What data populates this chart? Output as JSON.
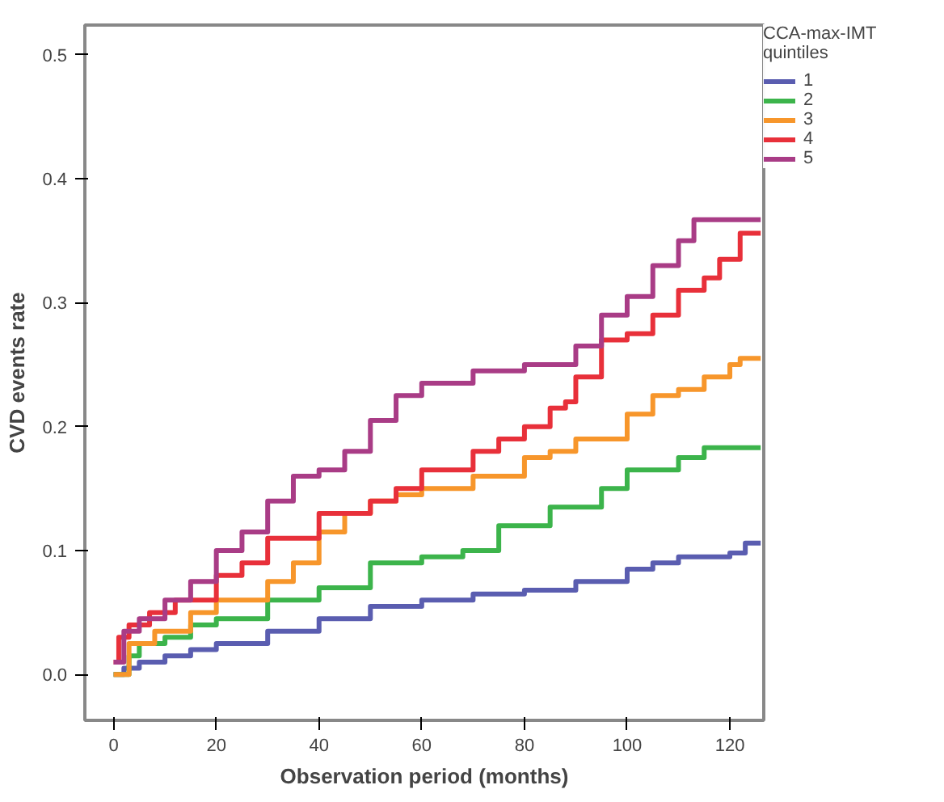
{
  "chart_data": {
    "type": "step",
    "xlabel": "Observation period (months)",
    "ylabel": "CVD events rate",
    "legend_title": "CCA-max-IMT\nquintiles",
    "legend": "top right",
    "grid": false,
    "line_style": "solid",
    "xlim": [
      -5.6,
      126.6
    ],
    "ylim": [
      -0.037,
      0.524
    ],
    "xticks": [
      0,
      20,
      40,
      60,
      80,
      100,
      120
    ],
    "yticks": [
      {
        "value": 0,
        "label": "0.0"
      },
      0.1,
      0.2,
      0.3,
      0.4,
      0.5
    ],
    "series": [
      {
        "name": "1",
        "color": "#5a5db0",
        "x": [
          0,
          2,
          5,
          10,
          15,
          20,
          30,
          40,
          50,
          60,
          70,
          80,
          90,
          100,
          105,
          110,
          120,
          123,
          126
        ],
        "values": [
          0,
          0.005,
          0.01,
          0.015,
          0.02,
          0.025,
          0.035,
          0.045,
          0.055,
          0.06,
          0.065,
          0.068,
          0.075,
          0.085,
          0.09,
          0.095,
          0.098,
          0.106,
          0.106
        ]
      },
      {
        "name": "2",
        "color": "#3cb44b",
        "x": [
          0,
          3,
          5,
          10,
          15,
          20,
          30,
          40,
          50,
          60,
          68,
          75,
          85,
          95,
          100,
          110,
          115,
          126
        ],
        "values": [
          0,
          0.015,
          0.025,
          0.03,
          0.04,
          0.045,
          0.06,
          0.07,
          0.09,
          0.095,
          0.1,
          0.12,
          0.135,
          0.15,
          0.165,
          0.175,
          0.183,
          0.183
        ]
      },
      {
        "name": "3",
        "color": "#f7962b",
        "x": [
          0,
          3,
          8,
          15,
          20,
          30,
          35,
          40,
          45,
          50,
          55,
          60,
          70,
          80,
          85,
          90,
          100,
          105,
          110,
          115,
          120,
          122,
          126
        ],
        "values": [
          0,
          0.025,
          0.035,
          0.05,
          0.06,
          0.075,
          0.09,
          0.115,
          0.13,
          0.14,
          0.145,
          0.15,
          0.16,
          0.175,
          0.18,
          0.19,
          0.21,
          0.225,
          0.23,
          0.24,
          0.25,
          0.255,
          0.255
        ]
      },
      {
        "name": "4",
        "color": "#e8303a",
        "x": [
          0,
          1,
          3,
          7,
          12,
          20,
          25,
          30,
          40,
          50,
          55,
          60,
          70,
          75,
          80,
          85,
          88,
          90,
          95,
          100,
          105,
          110,
          115,
          118,
          122,
          126
        ],
        "values": [
          0.01,
          0.03,
          0.04,
          0.05,
          0.06,
          0.08,
          0.09,
          0.11,
          0.13,
          0.14,
          0.15,
          0.165,
          0.18,
          0.19,
          0.2,
          0.215,
          0.22,
          0.24,
          0.27,
          0.275,
          0.29,
          0.31,
          0.32,
          0.335,
          0.356,
          0.356
        ]
      },
      {
        "name": "5",
        "color": "#a93c86",
        "x": [
          0,
          2,
          5,
          10,
          15,
          20,
          25,
          30,
          35,
          40,
          45,
          50,
          55,
          60,
          70,
          80,
          90,
          95,
          100,
          105,
          110,
          113,
          126
        ],
        "values": [
          0.01,
          0.035,
          0.045,
          0.06,
          0.075,
          0.1,
          0.115,
          0.14,
          0.16,
          0.165,
          0.18,
          0.205,
          0.225,
          0.235,
          0.245,
          0.25,
          0.265,
          0.29,
          0.305,
          0.33,
          0.35,
          0.367,
          0.367
        ]
      }
    ]
  }
}
